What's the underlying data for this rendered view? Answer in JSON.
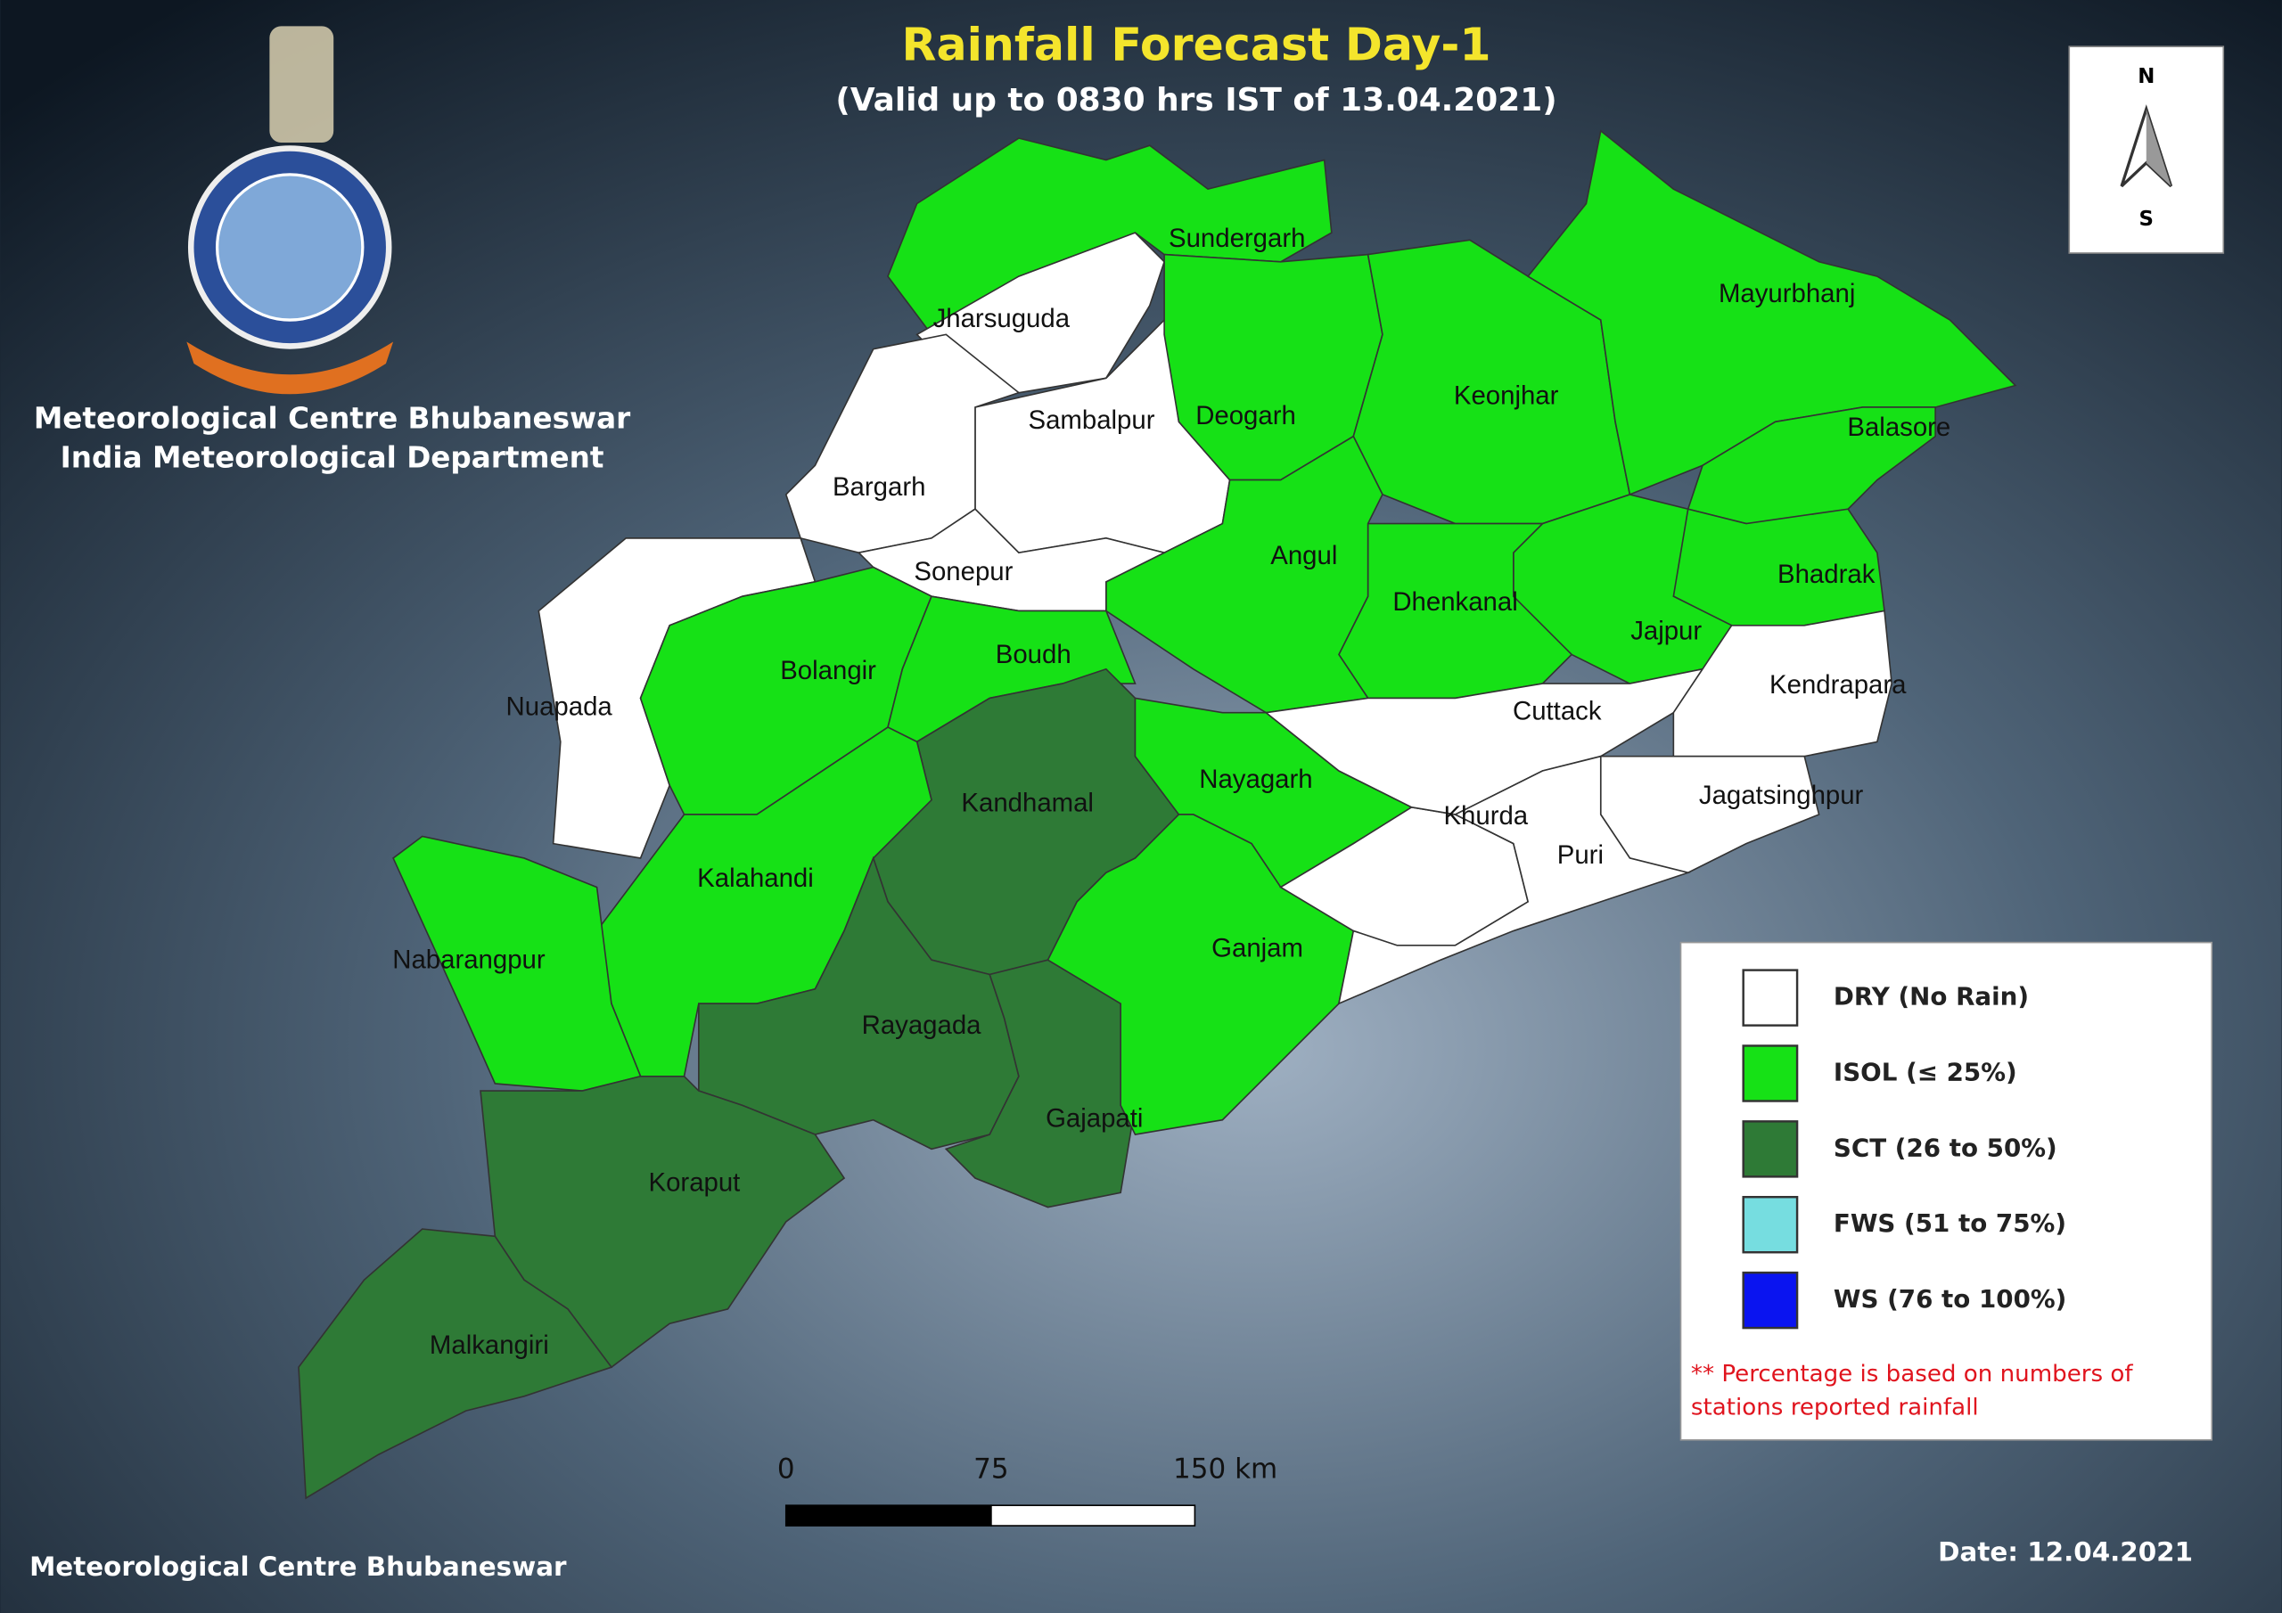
{
  "header": {
    "title": "Rainfall Forecast Day-1",
    "subtitle": "(Valid up to 0830 hrs IST of 13.04.2021)",
    "org_line1": "Meteorological Centre Bhubaneswar",
    "org_line2": "India Meteorological Department"
  },
  "north_arrow": {
    "north": "N",
    "south": "S"
  },
  "districts": [
    {
      "name": "Sundergarh",
      "color": "#16e116"
    },
    {
      "name": "Jharsuguda",
      "color": "#ffffff"
    },
    {
      "name": "Sambalpur",
      "color": "#ffffff"
    },
    {
      "name": "Deogarh",
      "color": "#16e116"
    },
    {
      "name": "Keonjhar",
      "color": "#16e116"
    },
    {
      "name": "Mayurbhanj",
      "color": "#16e116"
    },
    {
      "name": "Balasore",
      "color": "#16e116"
    },
    {
      "name": "Bhadrak",
      "color": "#16e116"
    },
    {
      "name": "Jajpur",
      "color": "#16e116"
    },
    {
      "name": "Dhenkanal",
      "color": "#16e116"
    },
    {
      "name": "Angul",
      "color": "#16e116"
    },
    {
      "name": "Bargarh",
      "color": "#ffffff"
    },
    {
      "name": "Sonepur",
      "color": "#ffffff"
    },
    {
      "name": "Nuapada",
      "color": "#ffffff"
    },
    {
      "name": "Bolangir",
      "color": "#16e116"
    },
    {
      "name": "Boudh",
      "color": "#16e116"
    },
    {
      "name": "Kandhamal",
      "color": "#2e7a36"
    },
    {
      "name": "Kalahandi",
      "color": "#16e116"
    },
    {
      "name": "Nabarangpur",
      "color": "#16e116"
    },
    {
      "name": "Rayagada",
      "color": "#2e7a36"
    },
    {
      "name": "Gajapati",
      "color": "#2e7a36"
    },
    {
      "name": "Koraput",
      "color": "#2e7a36"
    },
    {
      "name": "Malkangiri",
      "color": "#2e7a36"
    },
    {
      "name": "Nayagarh",
      "color": "#16e116"
    },
    {
      "name": "Ganjam",
      "color": "#16e116"
    },
    {
      "name": "Khurda",
      "color": "#ffffff"
    },
    {
      "name": "Cuttack",
      "color": "#ffffff"
    },
    {
      "name": "Kendrapara",
      "color": "#ffffff"
    },
    {
      "name": "Jagatsinghpur",
      "color": "#ffffff"
    },
    {
      "name": "Puri",
      "color": "#ffffff"
    }
  ],
  "legend": {
    "items": [
      {
        "label": "DRY (No Rain)",
        "color": "#ffffff"
      },
      {
        "label": "ISOL (≤ 25%)",
        "color": "#16e116"
      },
      {
        "label": "SCT (26 to 50%)",
        "color": "#2e7a36"
      },
      {
        "label": "FWS (51 to 75%)",
        "color": "#76dde0"
      },
      {
        "label": "WS (76 to 100%)",
        "color": "#0a14f0"
      }
    ],
    "note_line1": "** Percentage is based on numbers of",
    "note_line2": "stations reported rainfall"
  },
  "scale_bar": {
    "labels": [
      "0",
      "75",
      "150 km"
    ]
  },
  "footer": {
    "left": "Meteorological Centre Bhubaneswar",
    "date": "Date: 12.04.2021"
  }
}
